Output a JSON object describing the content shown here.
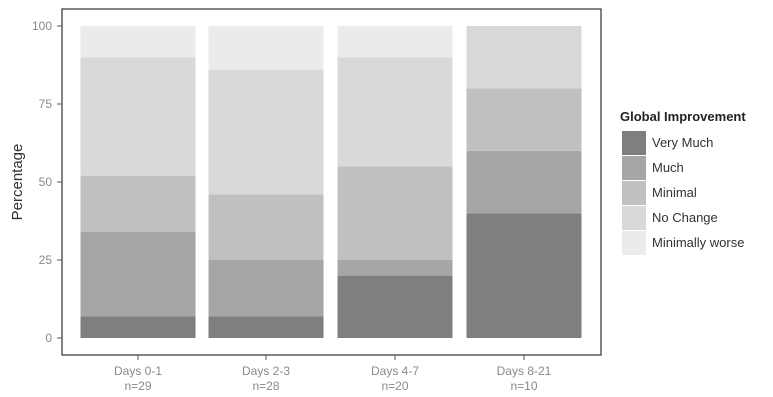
{
  "chart_data": {
    "type": "bar",
    "stacked": true,
    "categories": [
      "Days 0-1",
      "Days 2-3",
      "Days 4-7",
      "Days 8-21"
    ],
    "category_counts": [
      "n=29",
      "n=28",
      "n=20",
      "n=10"
    ],
    "ylabel": "Percentage",
    "xlabel": "",
    "ylim": [
      0,
      100
    ],
    "yticks": [
      0,
      25,
      50,
      75,
      100
    ],
    "legend": {
      "title": "Global Improvement",
      "position": "right"
    },
    "series": [
      {
        "name": "Very Much",
        "color": "#7f7f7f",
        "values": [
          7,
          7,
          20,
          40
        ]
      },
      {
        "name": "Much",
        "color": "#a6a6a6",
        "values": [
          27,
          18,
          5,
          20
        ]
      },
      {
        "name": "Minimal",
        "color": "#c0c0c0",
        "values": [
          18,
          21,
          30,
          20
        ]
      },
      {
        "name": "No Change",
        "color": "#d9d9d9",
        "values": [
          38,
          40,
          35,
          20
        ]
      },
      {
        "name": "Minimally worse",
        "color": "#ebebeb",
        "values": [
          10,
          14,
          10,
          0
        ]
      }
    ],
    "grid": false
  }
}
